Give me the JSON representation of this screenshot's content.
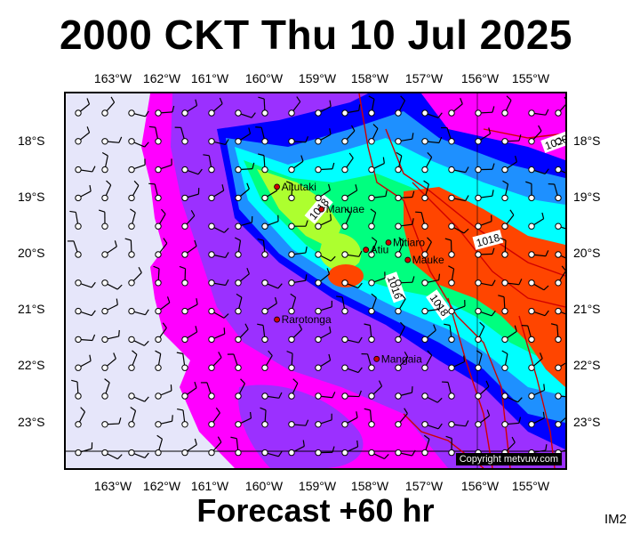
{
  "title": "2000 CKT Thu 10 Jul 2025",
  "footer": "Forecast +60 hr",
  "corner_code": "IM2",
  "copyright": "Copyright metvuw.com",
  "longitude_labels": [
    "163°W",
    "162°W",
    "161°W",
    "160°W",
    "159°W",
    "158°W",
    "157°W",
    "156°W",
    "155°W"
  ],
  "latitude_labels": [
    "18°S",
    "19°S",
    "20°S",
    "21°S",
    "22°S",
    "23°S"
  ],
  "islands": [
    {
      "name": "Aitutaki",
      "lon": -159.78,
      "lat": -18.86
    },
    {
      "name": "Manuae",
      "lon": -158.95,
      "lat": -19.26
    },
    {
      "name": "Atiu",
      "lon": -158.12,
      "lat": -19.98
    },
    {
      "name": "Mitiaro",
      "lon": -157.7,
      "lat": -19.85
    },
    {
      "name": "Mauke",
      "lon": -157.34,
      "lat": -20.16
    },
    {
      "name": "Rarotonga",
      "lon": -159.78,
      "lat": -21.22
    },
    {
      "name": "Mangaia",
      "lon": -157.92,
      "lat": -21.92
    }
  ],
  "isobar_labels": [
    "1018",
    "1016",
    "1018",
    "1018",
    "1020"
  ],
  "colors": {
    "background": "#e6e6fa",
    "light_rain": "#ff00ff",
    "moderate_rain": "#9b30ff",
    "rain_blue": "#0000ff",
    "rain_lightblue": "#1e90ff",
    "rain_cyan": "#00ffff",
    "rain_green": "#00ff7f",
    "rain_yellowgreen": "#adff2f",
    "heavy_rain": "#ff4500",
    "isobar": "#d00000",
    "town_marker": "#d00000"
  }
}
